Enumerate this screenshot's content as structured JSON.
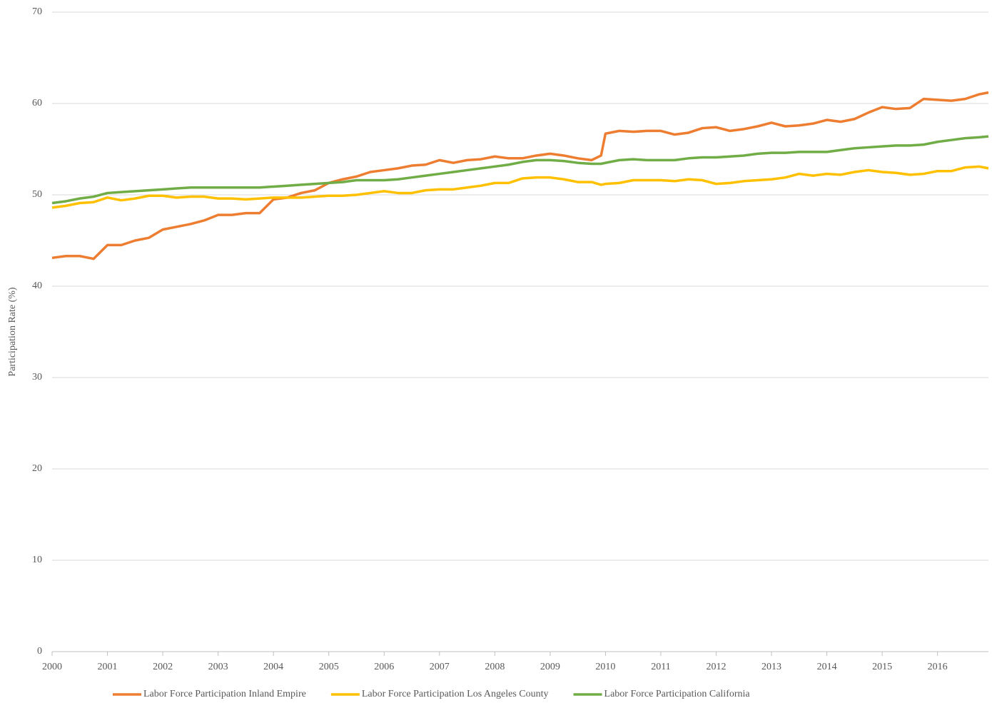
{
  "chart_data": {
    "type": "line",
    "y_label": "Participation Rate (%)",
    "x": [
      2000,
      2000.25,
      2000.5,
      2000.75,
      2001,
      2001.25,
      2001.5,
      2001.75,
      2002,
      2002.25,
      2002.5,
      2002.75,
      2003,
      2003.25,
      2003.5,
      2003.75,
      2004,
      2004.25,
      2004.5,
      2004.75,
      2005,
      2005.25,
      2005.5,
      2005.75,
      2006,
      2006.25,
      2006.5,
      2006.75,
      2007,
      2007.25,
      2007.5,
      2007.75,
      2008,
      2008.25,
      2008.5,
      2008.75,
      2009,
      2009.25,
      2009.5,
      2009.75,
      2009.92,
      2010,
      2010.25,
      2010.5,
      2010.75,
      2011,
      2011.25,
      2011.5,
      2011.75,
      2012,
      2012.25,
      2012.5,
      2012.75,
      2013,
      2013.25,
      2013.5,
      2013.75,
      2014,
      2014.25,
      2014.5,
      2014.75,
      2015,
      2015.25,
      2015.5,
      2015.75,
      2016,
      2016.25,
      2016.5,
      2016.75,
      2016.92
    ],
    "series": [
      {
        "name": "Labor Force Participation Inland Empire",
        "color": "#ed7d31",
        "values": [
          43.1,
          43.3,
          43.3,
          43.0,
          44.5,
          44.5,
          45.0,
          45.3,
          46.2,
          46.5,
          46.8,
          47.2,
          47.8,
          47.8,
          48.0,
          48.0,
          49.5,
          49.7,
          50.2,
          50.5,
          51.3,
          51.7,
          52.0,
          52.5,
          52.7,
          52.9,
          53.2,
          53.3,
          53.8,
          53.5,
          53.8,
          53.9,
          54.2,
          54.0,
          54.0,
          54.3,
          54.5,
          54.3,
          54.0,
          53.8,
          54.3,
          56.7,
          57.0,
          56.9,
          57.0,
          57.0,
          56.6,
          56.8,
          57.3,
          57.4,
          57.0,
          57.2,
          57.5,
          57.9,
          57.5,
          57.6,
          57.8,
          58.2,
          58.0,
          58.3,
          59.0,
          59.6,
          59.4,
          59.5,
          60.5,
          60.4,
          60.3,
          60.5,
          61.0,
          61.2
        ]
      },
      {
        "name": "Labor Force Participation Los Angeles County",
        "color": "#ffc000",
        "values": [
          48.6,
          48.8,
          49.1,
          49.2,
          49.7,
          49.4,
          49.6,
          49.9,
          49.9,
          49.7,
          49.8,
          49.8,
          49.6,
          49.6,
          49.5,
          49.6,
          49.7,
          49.7,
          49.7,
          49.8,
          49.9,
          49.9,
          50.0,
          50.2,
          50.4,
          50.2,
          50.2,
          50.5,
          50.6,
          50.6,
          50.8,
          51.0,
          51.3,
          51.3,
          51.8,
          51.9,
          51.9,
          51.7,
          51.4,
          51.4,
          51.1,
          51.2,
          51.3,
          51.6,
          51.6,
          51.6,
          51.5,
          51.7,
          51.6,
          51.2,
          51.3,
          51.5,
          51.6,
          51.7,
          51.9,
          52.3,
          52.1,
          52.3,
          52.2,
          52.5,
          52.7,
          52.5,
          52.4,
          52.2,
          52.3,
          52.6,
          52.6,
          53.0,
          53.1,
          52.9
        ]
      },
      {
        "name": "Labor Force Participation California",
        "color": "#70ad47",
        "values": [
          49.1,
          49.3,
          49.6,
          49.8,
          50.2,
          50.3,
          50.4,
          50.5,
          50.6,
          50.7,
          50.8,
          50.8,
          50.8,
          50.8,
          50.8,
          50.8,
          50.9,
          51.0,
          51.1,
          51.2,
          51.3,
          51.4,
          51.6,
          51.6,
          51.6,
          51.7,
          51.9,
          52.1,
          52.3,
          52.5,
          52.7,
          52.9,
          53.1,
          53.3,
          53.6,
          53.8,
          53.8,
          53.7,
          53.5,
          53.4,
          53.4,
          53.5,
          53.8,
          53.9,
          53.8,
          53.8,
          53.8,
          54.0,
          54.1,
          54.1,
          54.2,
          54.3,
          54.5,
          54.6,
          54.6,
          54.7,
          54.7,
          54.7,
          54.9,
          55.1,
          55.2,
          55.3,
          55.4,
          55.4,
          55.5,
          55.8,
          56.0,
          56.2,
          56.3,
          56.4
        ]
      }
    ],
    "xlim": [
      2000,
      2016.92
    ],
    "xticks": [
      2000,
      2001,
      2002,
      2003,
      2004,
      2005,
      2006,
      2007,
      2008,
      2009,
      2010,
      2011,
      2012,
      2013,
      2014,
      2015,
      2016
    ],
    "ylim": [
      0,
      70
    ],
    "yticks": [
      0,
      10,
      20,
      30,
      40,
      50,
      60,
      70
    ],
    "grid": true,
    "legend": "bottom"
  }
}
